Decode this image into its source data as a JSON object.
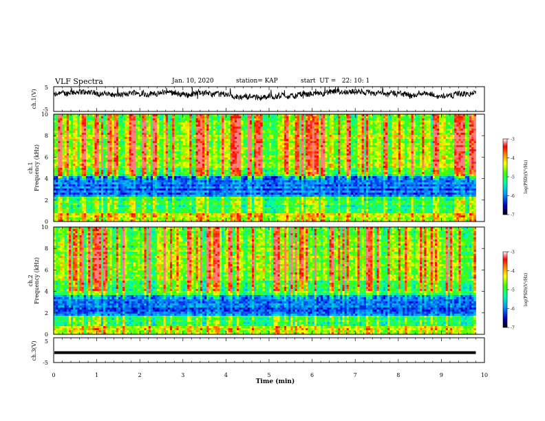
{
  "header": {
    "title": "VLF Spectra",
    "date": "Jan. 10, 2020",
    "station": "station= KAP",
    "start": "start  UT =   22: 10: 1"
  },
  "colors": {
    "spectrogram_scale": [
      "#000060",
      "#0000ff",
      "#00a0ff",
      "#00ffb0",
      "#40ff00",
      "#ffff00",
      "#ff8000",
      "#ff0000",
      "#ffffff"
    ],
    "trace": "#000000"
  },
  "chart_data": [
    {
      "type": "line",
      "panel": "ch1-waveform",
      "ylabel": "ch.1(V)",
      "ylim": [
        -5,
        5
      ],
      "yticks": [
        "5",
        "-5"
      ],
      "xlim": [
        0,
        10
      ],
      "description_values": "noisy trace oscillating roughly between -1 and 3 V"
    },
    {
      "type": "heatmap",
      "panel": "ch1-spectrogram",
      "ylabel_top": "ch.1",
      "ylabel": "Frequency (kHz)",
      "ylim": [
        0,
        10
      ],
      "yticks": [
        "0",
        "2",
        "4",
        "6",
        "8",
        "10"
      ],
      "xlim": [
        0,
        9.8
      ],
      "colorbar": {
        "label": "log(PSD)(V²/Hz)",
        "range": [
          -7,
          -3
        ],
        "ticks": [
          "-3",
          "-4",
          "-5",
          "-6",
          "-7"
        ]
      }
    },
    {
      "type": "heatmap",
      "panel": "ch2-spectrogram",
      "ylabel_top": "ch.2",
      "ylabel": "Frequency (kHz)",
      "ylim": [
        0,
        10
      ],
      "yticks": [
        "0",
        "2",
        "4",
        "6",
        "8",
        "10"
      ],
      "xlim": [
        0,
        9.8
      ],
      "colorbar": {
        "label": "log(PSD)(V²/Hz)",
        "range": [
          -7,
          -3
        ],
        "ticks": [
          "-3",
          "-4",
          "-5",
          "-6",
          "-7"
        ]
      }
    },
    {
      "type": "line",
      "panel": "ch3-waveform",
      "ylabel": "ch.3(V)",
      "ylim": [
        -5,
        5
      ],
      "yticks": [
        "5",
        "-5"
      ],
      "xlim": [
        0,
        10
      ],
      "values_constant": -1
    }
  ],
  "xaxis": {
    "label": "Time  (min)",
    "ticks": [
      "0",
      "1",
      "2",
      "3",
      "4",
      "5",
      "6",
      "7",
      "8",
      "9",
      "10"
    ]
  }
}
